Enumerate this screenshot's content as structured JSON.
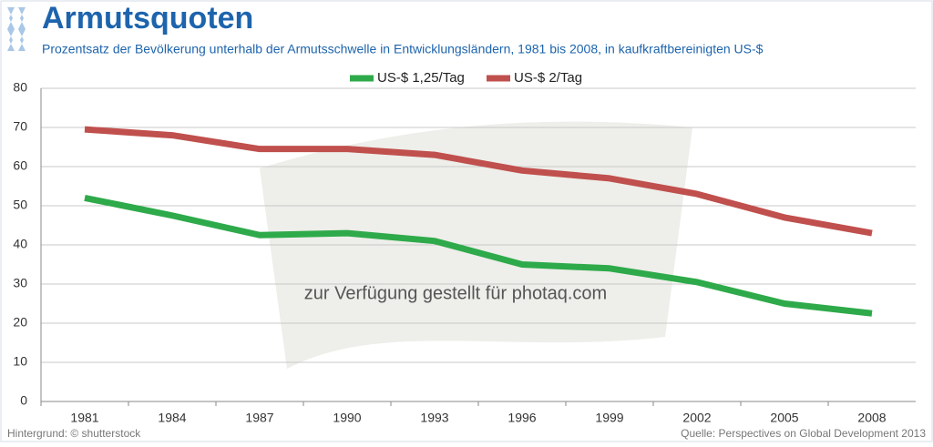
{
  "chart_data": {
    "type": "line",
    "title": "Armutsquoten",
    "subtitle": "Prozentsatz der Bevölkerung unterhalb der Armutsschwelle in Entwicklungsländern, 1981 bis 2008, in kaufkraftbereinigten US-$",
    "categories": [
      "1981",
      "1984",
      "1987",
      "1990",
      "1993",
      "1996",
      "1999",
      "2002",
      "2005",
      "2008"
    ],
    "series": [
      {
        "name": "US-$ 1,25/Tag",
        "color": "#2eaa4a",
        "values": [
          52,
          47.5,
          42.5,
          43,
          41,
          35,
          34,
          30.5,
          25,
          22.5
        ]
      },
      {
        "name": "US-$ 2/Tag",
        "color": "#c0504d",
        "values": [
          69.5,
          68,
          64.5,
          64.5,
          63,
          59,
          57,
          53,
          47,
          43
        ]
      }
    ],
    "ylim": [
      0,
      80
    ],
    "yticks": [
      0,
      10,
      20,
      30,
      40,
      50,
      60,
      70,
      80
    ],
    "grid": true,
    "watermark": "zur Verfügung gestellt für photaq.com",
    "footer_left": "Hintergrund: © shutterstock",
    "footer_right": "Quelle: Perspectives on Global Development 2013"
  }
}
